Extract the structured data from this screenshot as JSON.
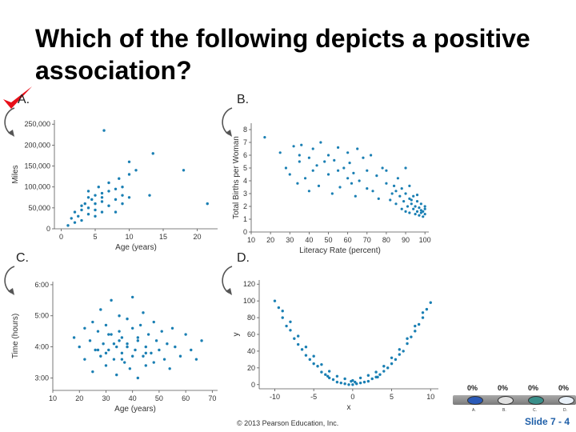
{
  "title": "Which of the following depicts a positive association?",
  "options": {
    "a": "A.",
    "b": "B.",
    "c": "C.",
    "d": "D."
  },
  "colors": {
    "points": "#1a7fb3",
    "check": "#e8101a",
    "slide_number": "#1f5fa8"
  },
  "icons": {
    "checkmark": "checkmark-icon",
    "arrow": "curved-arrow-icon"
  },
  "footer": {
    "copyright": "© 2013 Pearson Education, Inc.",
    "slide_number": "Slide 7 - 4"
  },
  "poll": {
    "percents": [
      "0%",
      "0%",
      "0%",
      "0%"
    ],
    "labels": [
      "A.",
      "B.",
      "C.",
      "D."
    ],
    "colors": [
      "#2a5ab8",
      "#e0e0e0",
      "#3a8f8a",
      "#e8f0f8"
    ]
  },
  "chart_data": [
    {
      "type": "scatter",
      "panel": "A",
      "xlabel": "Age (years)",
      "ylabel": "Miles",
      "xlim": [
        -1,
        23
      ],
      "ylim": [
        0,
        260000
      ],
      "xticks": [
        0,
        5,
        10,
        15,
        20
      ],
      "yticks": [
        0,
        50000,
        100000,
        150000,
        200000,
        250000
      ],
      "ytick_labels": [
        "0",
        "50,000",
        "100,000",
        "150,000",
        "200,000",
        "250,000"
      ],
      "x": [
        1,
        1.5,
        2,
        2,
        2.5,
        3,
        3,
        3,
        3.5,
        4,
        4,
        4,
        4,
        4.5,
        5,
        5,
        5,
        5,
        5.5,
        6,
        6,
        6,
        6,
        7,
        7,
        7,
        8,
        8,
        8,
        8.5,
        9,
        9,
        9,
        10,
        10,
        10,
        11,
        13,
        13.5,
        18,
        21.5,
        6.3
      ],
      "y": [
        8000,
        25000,
        15000,
        40000,
        30000,
        55000,
        20000,
        45000,
        60000,
        75000,
        35000,
        90000,
        50000,
        70000,
        80000,
        30000,
        60000,
        45000,
        100000,
        85000,
        65000,
        40000,
        75000,
        90000,
        55000,
        110000,
        70000,
        95000,
        40000,
        120000,
        80000,
        60000,
        100000,
        130000,
        75000,
        160000,
        140000,
        80000,
        180000,
        140000,
        60000,
        235000
      ]
    },
    {
      "type": "scatter",
      "panel": "B",
      "xlabel": "Literacy Rate (percent)",
      "ylabel": "Total Births per Woman",
      "xlim": [
        10,
        102
      ],
      "ylim": [
        0,
        8.5
      ],
      "xticks": [
        10,
        20,
        30,
        40,
        50,
        60,
        70,
        80,
        90,
        100
      ],
      "yticks": [
        0,
        1,
        2,
        3,
        4,
        5,
        6,
        7,
        8
      ],
      "x": [
        17,
        25,
        28,
        30,
        32,
        34,
        35,
        35,
        36,
        38,
        40,
        40,
        42,
        42,
        44,
        45,
        46,
        48,
        50,
        50,
        52,
        53,
        55,
        55,
        56,
        58,
        60,
        60,
        61,
        62,
        63,
        64,
        65,
        66,
        68,
        70,
        70,
        72,
        73,
        75,
        76,
        78,
        80,
        80,
        82,
        83,
        84,
        85,
        86,
        87,
        88,
        88,
        89,
        90,
        90,
        91,
        92,
        92,
        93,
        94,
        94,
        95,
        95,
        96,
        96,
        97,
        97,
        98,
        98,
        99,
        99,
        100,
        100,
        100,
        90,
        85,
        92,
        96,
        98,
        93
      ],
      "y": [
        7.4,
        6.2,
        5.0,
        4.5,
        6.7,
        3.8,
        5.5,
        6.0,
        6.8,
        4.2,
        5.8,
        3.2,
        6.5,
        4.8,
        5.2,
        3.6,
        7.0,
        5.5,
        4.5,
        6.0,
        3.0,
        5.6,
        4.8,
        6.6,
        3.5,
        5.0,
        6.2,
        4.2,
        5.4,
        3.8,
        4.6,
        2.8,
        6.5,
        4.0,
        5.8,
        3.4,
        4.8,
        6.0,
        3.2,
        4.4,
        2.6,
        5.0,
        3.8,
        4.8,
        2.5,
        3.0,
        3.6,
        2.2,
        4.2,
        2.8,
        1.8,
        3.4,
        2.4,
        1.6,
        3.0,
        2.0,
        2.6,
        1.5,
        2.2,
        1.8,
        2.8,
        1.4,
        2.0,
        1.6,
        2.4,
        1.3,
        1.9,
        1.5,
        2.2,
        1.6,
        1.2,
        1.8,
        1.4,
        2.0,
        5.0,
        3.2,
        3.6,
        2.9,
        1.7,
        2.5
      ]
    },
    {
      "type": "scatter",
      "panel": "C",
      "xlabel": "Age (years)",
      "ylabel": "Time (hours)",
      "xlim": [
        10,
        72
      ],
      "ylim": [
        2.6,
        6.1
      ],
      "xticks": [
        10,
        20,
        30,
        40,
        50,
        60,
        70
      ],
      "yticks": [
        3.0,
        4.0,
        5.0,
        6.0
      ],
      "ytick_labels": [
        "3:00",
        "4:00",
        "5:00",
        "6:00"
      ],
      "x": [
        18,
        20,
        22,
        22,
        24,
        25,
        25,
        26,
        27,
        28,
        28,
        29,
        30,
        30,
        31,
        32,
        32,
        33,
        34,
        34,
        35,
        35,
        36,
        36,
        37,
        38,
        38,
        39,
        40,
        40,
        41,
        42,
        42,
        43,
        44,
        44,
        45,
        45,
        46,
        47,
        48,
        48,
        49,
        50,
        51,
        52,
        53,
        54,
        55,
        56,
        58,
        60,
        62,
        64,
        66,
        30,
        35,
        40,
        38,
        42,
        33,
        27,
        45,
        36,
        31
      ],
      "y": [
        4.3,
        4.0,
        3.6,
        4.6,
        4.2,
        3.2,
        4.8,
        3.9,
        4.5,
        3.7,
        5.2,
        4.1,
        3.4,
        4.7,
        3.9,
        4.4,
        5.5,
        3.6,
        4.0,
        3.1,
        4.5,
        5.0,
        3.8,
        4.3,
        3.5,
        4.9,
        4.1,
        3.3,
        4.6,
        5.6,
        3.9,
        4.2,
        3.0,
        4.7,
        3.7,
        5.1,
        4.0,
        3.4,
        4.4,
        3.8,
        4.8,
        3.5,
        4.2,
        3.9,
        4.5,
        3.6,
        4.1,
        3.3,
        4.6,
        4.0,
        3.7,
        4.4,
        3.9,
        3.6,
        4.2,
        3.8,
        4.2,
        3.7,
        4.0,
        4.3,
        4.1,
        3.9,
        3.8,
        3.6,
        4.4
      ]
    },
    {
      "type": "scatter",
      "panel": "D",
      "xlabel": "x",
      "ylabel": "y",
      "xlim": [
        -12,
        11
      ],
      "ylim": [
        -5,
        125
      ],
      "xticks": [
        -10,
        -5,
        0,
        5,
        10
      ],
      "yticks": [
        0,
        20,
        40,
        60,
        80,
        100,
        120
      ],
      "x": [
        -10,
        -9.5,
        -9,
        -9,
        -8.5,
        -8,
        -8,
        -7.5,
        -7,
        -7,
        -6.5,
        -6,
        -6,
        -5.5,
        -5,
        -5,
        -4.5,
        -4,
        -4,
        -3.5,
        -3,
        -3,
        -2.5,
        -2,
        -2,
        -1.5,
        -1,
        -1,
        -0.5,
        0,
        0,
        0.5,
        1,
        1,
        1.5,
        2,
        2,
        2.5,
        3,
        3,
        3.5,
        4,
        4,
        4.5,
        5,
        5,
        5.5,
        6,
        6,
        6.5,
        7,
        7,
        7.5,
        8,
        8,
        8.5,
        9,
        9,
        9.5,
        10,
        -3.2,
        3.2,
        -0.2,
        0.3
      ],
      "y": [
        100,
        92,
        80,
        88,
        70,
        65,
        75,
        55,
        48,
        58,
        42,
        35,
        45,
        30,
        25,
        34,
        22,
        15,
        24,
        12,
        8,
        16,
        6,
        3,
        10,
        2,
        1,
        7,
        0,
        0,
        5,
        1,
        2,
        8,
        3,
        4,
        11,
        7,
        9,
        15,
        12,
        16,
        22,
        20,
        25,
        32,
        30,
        36,
        42,
        40,
        49,
        55,
        57,
        64,
        70,
        72,
        80,
        86,
        90,
        98,
        10,
        9,
        4,
        3
      ]
    }
  ]
}
